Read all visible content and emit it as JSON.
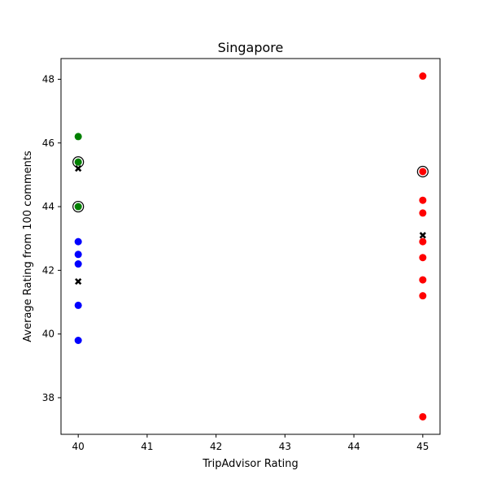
{
  "chart_data": {
    "type": "scatter",
    "title": "Singapore",
    "xlabel": "TripAdvisor Rating",
    "ylabel": "Average Rating from 100 comments",
    "xlim": [
      39.75,
      45.25
    ],
    "ylim": [
      36.85,
      48.65
    ],
    "xticks": [
      40,
      41,
      42,
      43,
      44,
      45
    ],
    "yticks": [
      38,
      40,
      42,
      44,
      46,
      48
    ],
    "grid": false,
    "legend": "none",
    "series": [
      {
        "color": "#0000ff",
        "marker": "circle",
        "points": [
          [
            40,
            42.9
          ],
          [
            40,
            42.5
          ],
          [
            40,
            42.2
          ],
          [
            40,
            40.9
          ],
          [
            40,
            39.8
          ]
        ]
      },
      {
        "color": "#008000",
        "marker": "circle",
        "points": [
          [
            40,
            46.2
          ],
          [
            40,
            45.4
          ],
          [
            40,
            44.0
          ]
        ]
      },
      {
        "color": "#ff0000",
        "marker": "circle",
        "points": [
          [
            45,
            48.1
          ],
          [
            45,
            45.1
          ],
          [
            45,
            44.2
          ],
          [
            45,
            43.8
          ],
          [
            45,
            42.9
          ],
          [
            45,
            42.4
          ],
          [
            45,
            41.7
          ],
          [
            45,
            41.2
          ],
          [
            45,
            37.4
          ]
        ]
      },
      {
        "color": "#000000",
        "marker": "x",
        "points": [
          [
            40,
            45.2
          ],
          [
            40,
            41.65
          ],
          [
            45,
            43.1
          ]
        ]
      },
      {
        "color": "#000000",
        "marker": "open-circle",
        "points": [
          [
            40,
            45.4
          ],
          [
            40,
            44.0
          ],
          [
            45,
            45.1
          ]
        ]
      }
    ]
  }
}
